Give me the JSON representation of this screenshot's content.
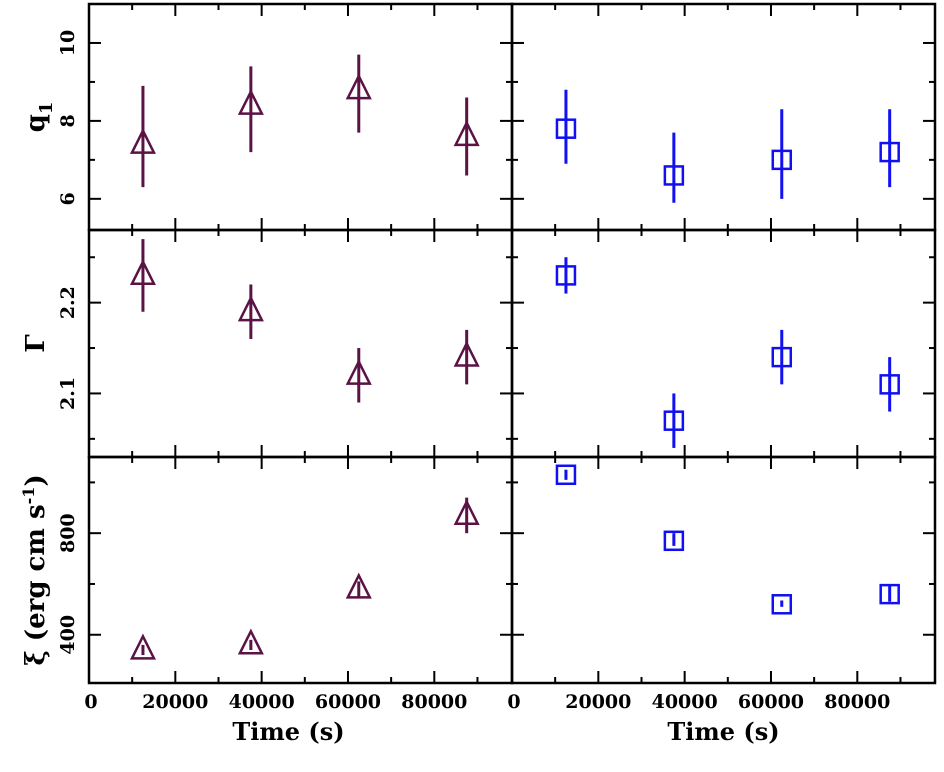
{
  "colors": {
    "left_series": "#5b1245",
    "right_series": "#1010f0",
    "axes": "#000000"
  },
  "x_axis": {
    "label": "Time (s)",
    "range": [
      0,
      98000
    ],
    "tick_labels": [
      "0",
      "20000",
      "40000",
      "60000",
      "80000"
    ]
  },
  "rows": [
    {
      "label_main": "q",
      "label_sub": "1"
    },
    {
      "label_main": "Γ",
      "label_sub": ""
    },
    {
      "label_main": "ξ (erg cm s",
      "label_sup": "-1",
      "label_close": ")"
    }
  ],
  "chart_data": [
    {
      "type": "scatter",
      "panel": "left-top",
      "marker": "triangle",
      "ylim": [
        5.2,
        11.0
      ],
      "y_ticks": [
        "6",
        "8",
        "10"
      ],
      "x": [
        12500,
        37500,
        62500,
        87500
      ],
      "y": [
        7.4,
        8.4,
        8.8,
        7.6
      ],
      "y_err": [
        [
          6.3,
          8.9
        ],
        [
          7.2,
          9.4
        ],
        [
          7.7,
          9.7
        ],
        [
          6.6,
          8.6
        ]
      ]
    },
    {
      "type": "scatter",
      "panel": "right-top",
      "marker": "square",
      "ylim": [
        5.2,
        11.0
      ],
      "x": [
        12500,
        37500,
        62500,
        87500
      ],
      "y": [
        7.8,
        6.6,
        7.0,
        7.2
      ],
      "y_err": [
        [
          6.9,
          8.8
        ],
        [
          5.9,
          7.7
        ],
        [
          6.0,
          8.3
        ],
        [
          6.3,
          8.3
        ]
      ]
    },
    {
      "type": "scatter",
      "panel": "left-middle",
      "marker": "triangle",
      "ylim": [
        2.03,
        2.28
      ],
      "y_ticks": [
        "2.1",
        "2.2"
      ],
      "x": [
        12500,
        37500,
        62500,
        87500
      ],
      "y": [
        2.23,
        2.19,
        2.12,
        2.14
      ],
      "y_err": [
        [
          2.19,
          2.27
        ],
        [
          2.16,
          2.22
        ],
        [
          2.09,
          2.15
        ],
        [
          2.11,
          2.17
        ]
      ]
    },
    {
      "type": "scatter",
      "panel": "right-middle",
      "marker": "square",
      "ylim": [
        2.03,
        2.28
      ],
      "x": [
        12500,
        37500,
        62500,
        87500
      ],
      "y": [
        2.23,
        2.07,
        2.14,
        2.11
      ],
      "y_err": [
        [
          2.21,
          2.25
        ],
        [
          2.04,
          2.1
        ],
        [
          2.11,
          2.17
        ],
        [
          2.08,
          2.14
        ]
      ]
    },
    {
      "type": "scatter",
      "panel": "left-bottom",
      "marker": "triangle",
      "ylim": [
        210,
        1100
      ],
      "y_ticks": [
        "400",
        "800"
      ],
      "x": [
        12500,
        37500,
        62500,
        87500
      ],
      "y": [
        340,
        360,
        580,
        870
      ],
      "y_err": [
        [
          320,
          360
        ],
        [
          340,
          380
        ],
        [
          550,
          610
        ],
        [
          800,
          940
        ]
      ]
    },
    {
      "type": "scatter",
      "panel": "right-bottom",
      "marker": "square",
      "ylim": [
        210,
        1100
      ],
      "x": [
        12500,
        37500,
        62500,
        87500
      ],
      "y": [
        1030,
        770,
        520,
        560
      ],
      "y_err": [
        [
          1010,
          1050
        ],
        [
          750,
          800
        ],
        [
          510,
          535
        ],
        [
          530,
          600
        ]
      ]
    }
  ]
}
